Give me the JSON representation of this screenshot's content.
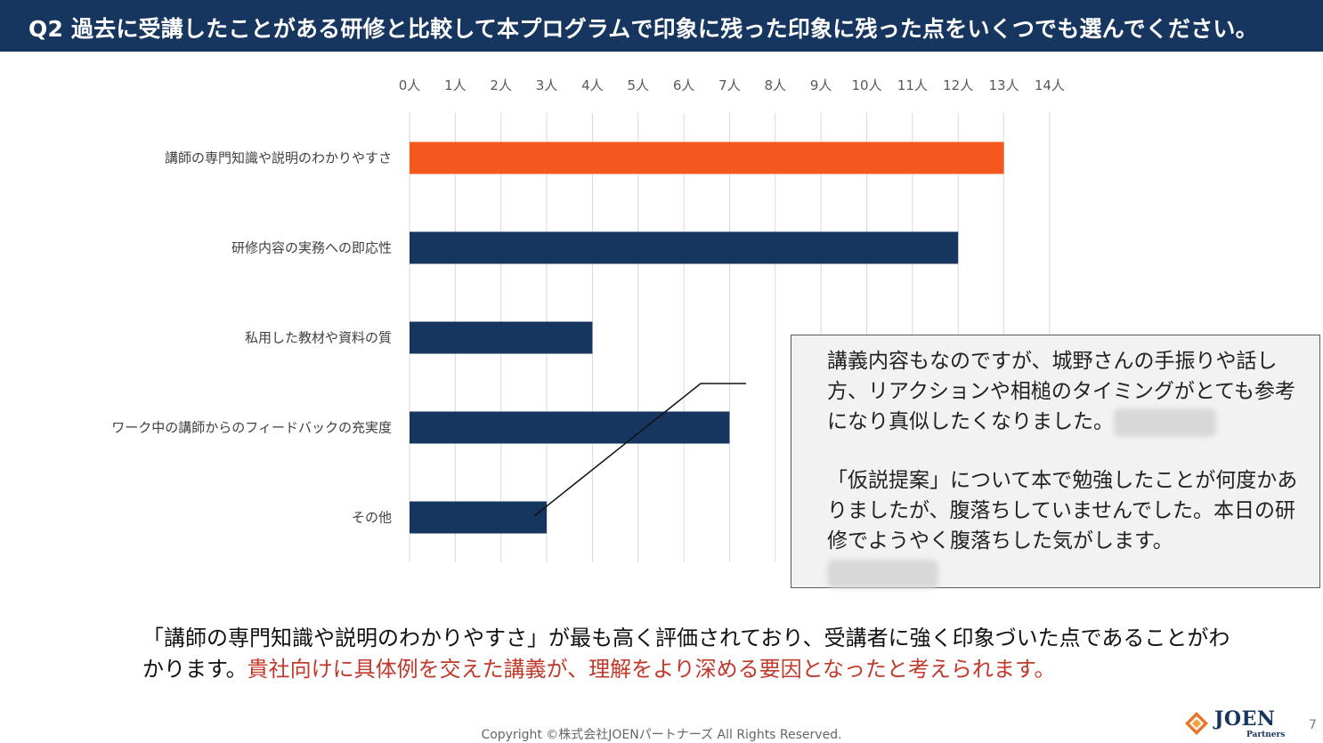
{
  "header": {
    "title": "Q2 過去に受講したことがある研修と比較して本プログラムで印象に残った印象に残った点をいくつでも選んでください。"
  },
  "chart_data": {
    "type": "bar",
    "orientation": "horizontal",
    "categories": [
      "講師の専門知識や説明のわかりやすさ",
      "研修内容の実務への即応性",
      "私用した教材や資料の質",
      "ワーク中の講師からのフィードバックの充実度",
      "その他"
    ],
    "values": [
      13,
      12,
      4,
      7,
      3
    ],
    "xlim": [
      0,
      14
    ],
    "x_ticks": [
      "0人",
      "1人",
      "2人",
      "3人",
      "4人",
      "5人",
      "6人",
      "7人",
      "8人",
      "9人",
      "10人",
      "11人",
      "12人",
      "13人",
      "14人"
    ],
    "x_axis_position": "top",
    "grid": true,
    "highlight_index": 0,
    "colors": {
      "bar": "#16365f",
      "highlight": "#f4581f",
      "grid": "#d9d9d9"
    }
  },
  "callout": {
    "paragraph1": "講義内容もなのですが、城野さんの手振りや話し方、リアクションや相槌のタイミングがとても参考になり真似したくなりました。",
    "paragraph2": "「仮説提案」について本で勉強したことが何度かありましたが、腹落ちしていませんでした。本日の研修でようやく腹落ちした気がします。"
  },
  "summary": {
    "normal": "「講師の専門知識や説明のわかりやすさ」が最も高く評価されており、受講者に強く印象づいた点であることがわかります。",
    "highlight": "貴社向けに具体例を交えた講義が、理解をより深める要因となったと考えられます。"
  },
  "footer": {
    "copyright": "Copyright ©株式会社JOENパートナーズ All Rights Reserved.",
    "logo_name": "JOEN",
    "logo_sub": "Partners",
    "page_number": "7"
  },
  "colors": {
    "header_bg": "#16365f",
    "accent_red": "#c0392b"
  }
}
